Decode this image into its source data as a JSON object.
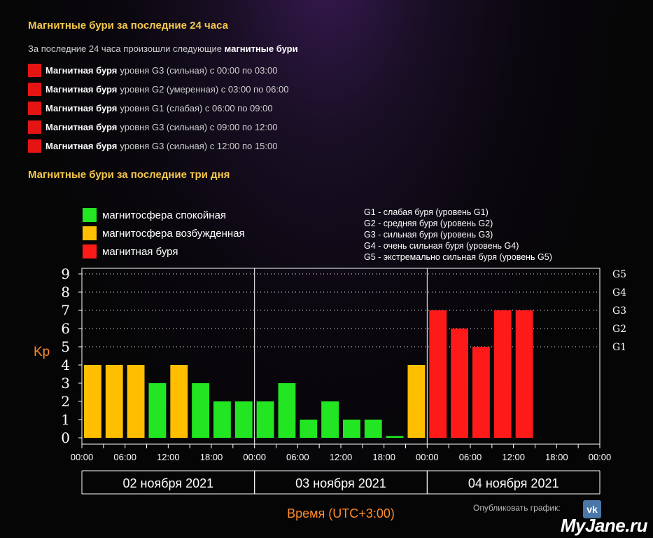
{
  "section1": {
    "title": "Магнитные бури за последние 24 часа",
    "intro_prefix": "За последние 24 часа произошли следующие",
    "intro_bold": "магнитные бури",
    "storms": [
      {
        "bold": "Магнитная буря",
        "text": "уровня G3 (сильная) с 00:00 по 03:00"
      },
      {
        "bold": "Магнитная буря",
        "text": "уровня G2 (умеренная) с 03:00 по 06:00"
      },
      {
        "bold": "Магнитная буря",
        "text": "уровня G1 (слабая) с 06:00 по 09:00"
      },
      {
        "bold": "Магнитная буря",
        "text": "уровня G3 (сильная) с 09:00 по 12:00"
      },
      {
        "bold": "Магнитная буря",
        "text": "уровня G3 (сильная) с 12:00 по 15:00"
      }
    ]
  },
  "section2": {
    "title": "Магнитные бури за последние три дня"
  },
  "chart_data": {
    "type": "bar",
    "ylabel": "Kp",
    "xlabel": "Время (UTC+3:00)",
    "ylim": [
      0,
      9
    ],
    "y_ticks": [
      "0",
      "1",
      "2",
      "3",
      "4",
      "5",
      "6",
      "7",
      "8",
      "9"
    ],
    "g_levels": [
      {
        "label": "G1",
        "y": 5
      },
      {
        "label": "G2",
        "y": 6
      },
      {
        "label": "G3",
        "y": 7
      },
      {
        "label": "G4",
        "y": 8
      },
      {
        "label": "G5",
        "y": 9
      }
    ],
    "legend": [
      {
        "label": "магнитосфера спокойная",
        "color": "#22e622"
      },
      {
        "label": "магнитосфера возбужденная",
        "color": "#ffbf00"
      },
      {
        "label": "магнитная буря",
        "color": "#ff1a1a"
      }
    ],
    "scale_legend": [
      "G1 - слабая буря (уровень G1)",
      "G2 - средняя буря (уровень G2)",
      "G3 - сильная буря (уровень G3)",
      "G4 - очень сильная буря (уровень G4)",
      "G5 - экстремально сильная буря (уровень G5)"
    ],
    "colors": {
      "quiet": "#22e622",
      "active": "#ffbf00",
      "storm": "#ff1a1a"
    },
    "days": [
      "02 ноября 2021",
      "03 ноября 2021",
      "04 ноября 2021"
    ],
    "x_tick_labels": [
      "00:00",
      "06:00",
      "12:00",
      "18:00",
      "00:00",
      "06:00",
      "12:00",
      "18:00",
      "00:00",
      "06:00",
      "12:00",
      "18:00",
      "00:00"
    ],
    "values": [
      4,
      4,
      4,
      3,
      4,
      3,
      2,
      2,
      2,
      3,
      1,
      2,
      1,
      1,
      0.1,
      4,
      7,
      6,
      5,
      7,
      7
    ],
    "levels": [
      "active",
      "active",
      "active",
      "quiet",
      "active",
      "quiet",
      "quiet",
      "quiet",
      "quiet",
      "quiet",
      "quiet",
      "quiet",
      "quiet",
      "quiet",
      "quiet",
      "active",
      "storm",
      "storm",
      "storm",
      "storm",
      "storm"
    ]
  },
  "footer": {
    "publish_label": "Опубликовать график:",
    "vk_label": "vk",
    "watermark": "MyJane.ru"
  }
}
